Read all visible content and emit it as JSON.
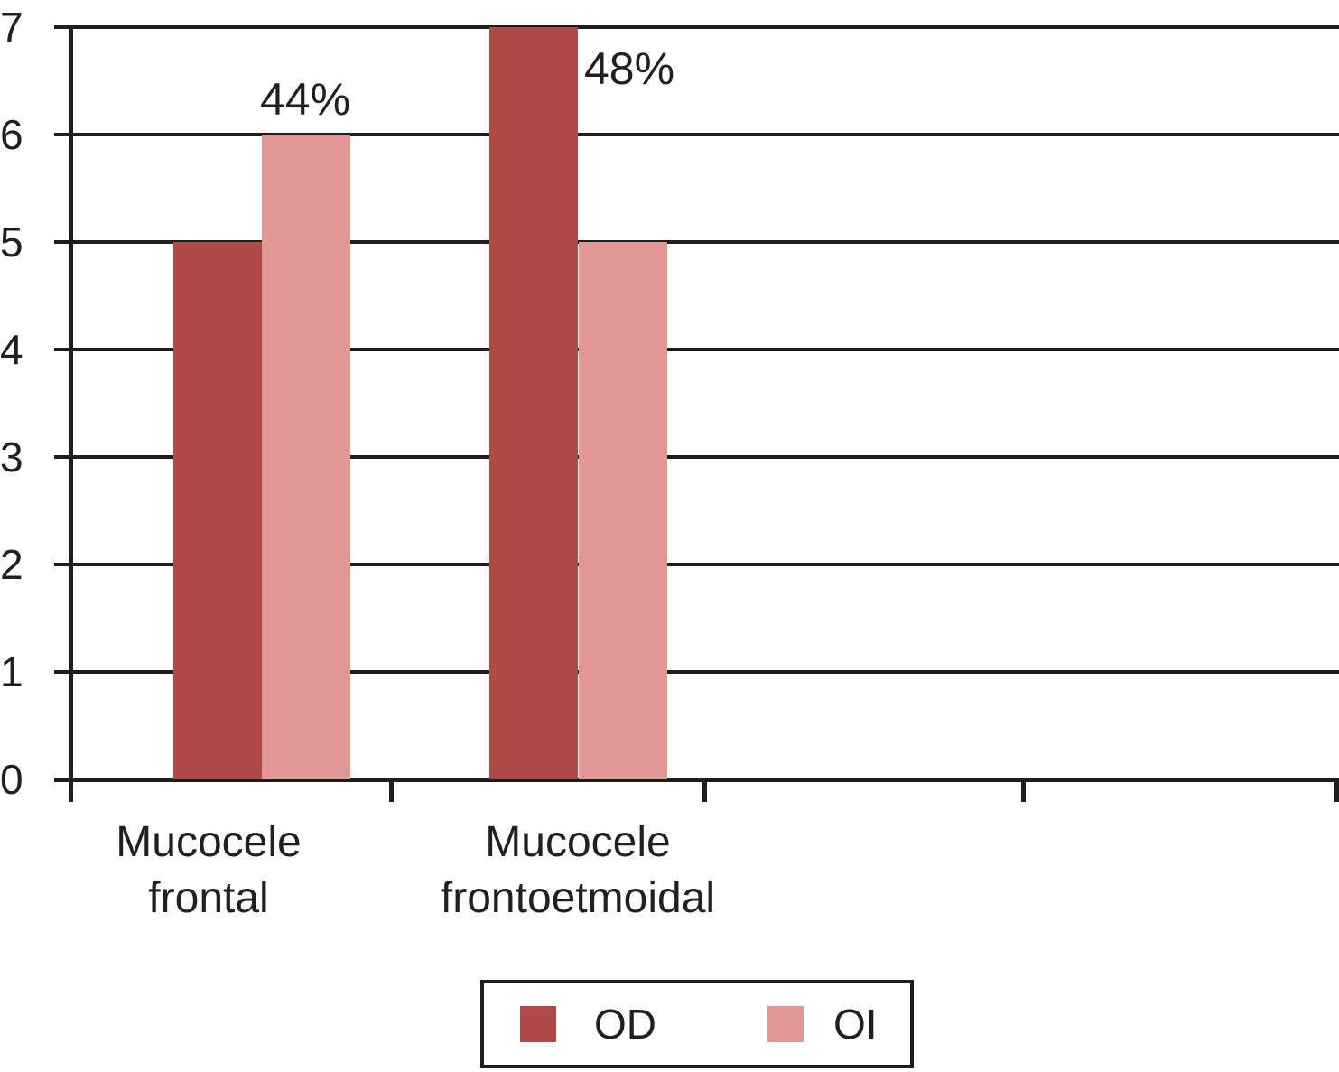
{
  "chart_data": {
    "type": "bar",
    "title": "",
    "xlabel": "",
    "ylabel": "",
    "categories": [
      "Mucocele frontal",
      "Mucocele frontoetmoidal"
    ],
    "category_label_lines": [
      [
        "Mucocele",
        "frontal"
      ],
      [
        "Mucocele",
        "frontoetmoidal"
      ]
    ],
    "series": [
      {
        "name": "OD",
        "color": "#b04a44",
        "values": [
          5,
          7
        ]
      },
      {
        "name": "OI",
        "color": "#e39794",
        "values": [
          6,
          5
        ]
      }
    ],
    "annotations": [
      {
        "label": "44%",
        "category": 0,
        "series": "OI"
      },
      {
        "label": "48%",
        "category": 1,
        "series": "OD"
      }
    ],
    "y_axis": {
      "min": 0,
      "max": 7,
      "step": 1,
      "tick_labels": [
        "0",
        "1",
        "2",
        "3",
        "4",
        "5",
        "6",
        "7"
      ]
    },
    "x_axis": {
      "visible_category_slots": 4
    },
    "grid": "horizontal",
    "legend": {
      "position": "bottom",
      "items": [
        "OD",
        "OI"
      ]
    },
    "colors": {
      "od": "#b04a44",
      "oi": "#e39794",
      "line": "#1e1e1e",
      "text": "#231f20",
      "background": "#ffffff"
    }
  }
}
